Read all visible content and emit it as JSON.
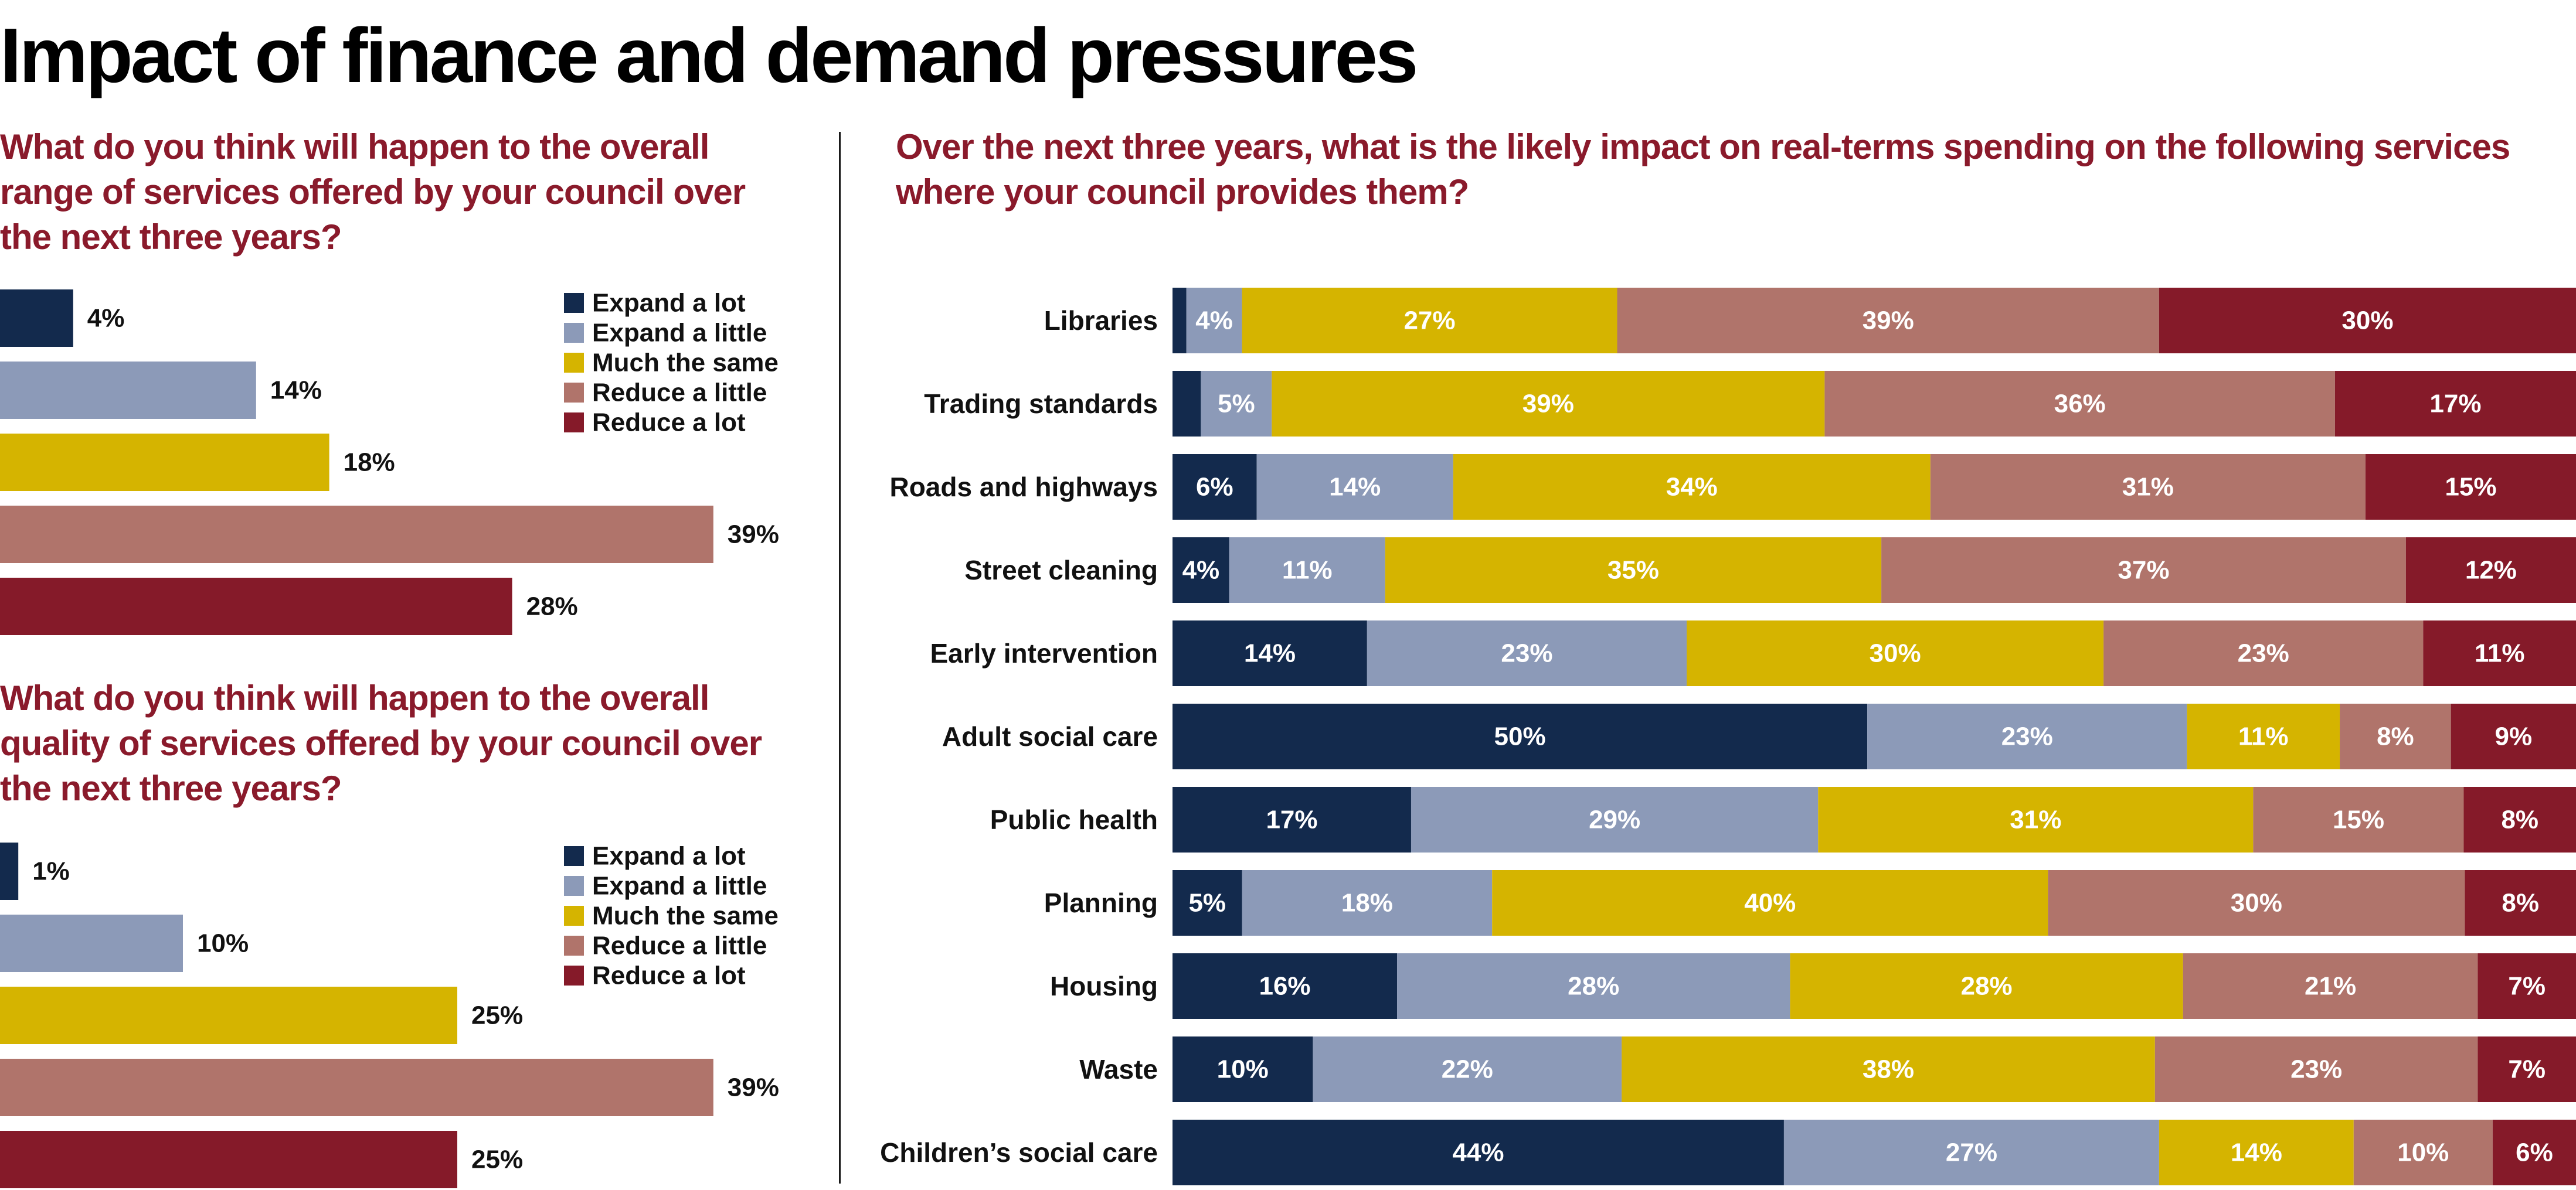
{
  "title": "Impact of finance and demand pressures",
  "colors": {
    "expand_lot": "#132a4d",
    "expand_little": "#8c9ab8",
    "same": "#d5b400",
    "reduce_little": "#b0746b",
    "reduce_lot": "#851a29"
  },
  "chart_data": [
    {
      "type": "bar",
      "orientation": "horizontal",
      "title": "What do you think will happen to the overall range of services offered by your council over the next three years?",
      "categories": [
        "Expand a lot",
        "Expand a little",
        "Much the same",
        "Reduce a little",
        "Reduce a lot"
      ],
      "values": [
        4,
        14,
        18,
        39,
        28
      ],
      "labels": [
        "4%",
        "14%",
        "18%",
        "39%",
        "28%"
      ],
      "legend": [
        "Expand a lot",
        "Expand a little",
        "Much the same",
        "Reduce a little",
        "Reduce a lot"
      ],
      "unit": "%"
    },
    {
      "type": "bar",
      "orientation": "horizontal",
      "title": "What do you think will happen to the overall quality of services offered by your council over the next three years?",
      "categories": [
        "Expand a lot",
        "Expand a little",
        "Much the same",
        "Reduce a little",
        "Reduce a lot"
      ],
      "values": [
        1,
        10,
        25,
        39,
        25
      ],
      "labels": [
        "1%",
        "10%",
        "25%",
        "39%",
        "25%"
      ],
      "legend": [
        "Expand a lot",
        "Expand a little",
        "Much the same",
        "Reduce a little",
        "Reduce a lot"
      ],
      "unit": "%"
    },
    {
      "type": "bar",
      "orientation": "horizontal",
      "stacked": true,
      "title": "Over the next three years, what is the likely impact on real-terms spending on the following services where your council provides them?",
      "series_names": [
        "Expand a lot",
        "Expand a little",
        "Much the same",
        "Reduce a little",
        "Reduce a lot"
      ],
      "rows": [
        {
          "category": "Libraries",
          "values": [
            1,
            4,
            27,
            39,
            30
          ],
          "labels": [
            "",
            "4%",
            "27%",
            "39%",
            "30%"
          ]
        },
        {
          "category": "Trading standards",
          "values": [
            2,
            5,
            39,
            36,
            17
          ],
          "labels": [
            "",
            "5%",
            "39%",
            "36%",
            "17%"
          ]
        },
        {
          "category": "Roads and highways",
          "values": [
            6,
            14,
            34,
            31,
            15
          ],
          "labels": [
            "6%",
            "14%",
            "34%",
            "31%",
            "15%"
          ]
        },
        {
          "category": "Street cleaning",
          "values": [
            4,
            11,
            35,
            37,
            12
          ],
          "labels": [
            "4%",
            "11%",
            "35%",
            "37%",
            "12%"
          ]
        },
        {
          "category": "Early intervention",
          "values": [
            14,
            23,
            30,
            23,
            11
          ],
          "labels": [
            "14%",
            "23%",
            "30%",
            "23%",
            "11%"
          ]
        },
        {
          "category": "Adult social care",
          "values": [
            50,
            23,
            11,
            8,
            9
          ],
          "labels": [
            "50%",
            "23%",
            "11%",
            "8%",
            "9%"
          ]
        },
        {
          "category": "Public health",
          "values": [
            17,
            29,
            31,
            15,
            8
          ],
          "labels": [
            "17%",
            "29%",
            "31%",
            "15%",
            "8%"
          ]
        },
        {
          "category": "Planning",
          "values": [
            5,
            18,
            40,
            30,
            8
          ],
          "labels": [
            "5%",
            "18%",
            "40%",
            "30%",
            "8%"
          ]
        },
        {
          "category": "Housing",
          "values": [
            16,
            28,
            28,
            21,
            7
          ],
          "labels": [
            "16%",
            "28%",
            "28%",
            "21%",
            "7%"
          ]
        },
        {
          "category": "Waste",
          "values": [
            10,
            22,
            38,
            23,
            7
          ],
          "labels": [
            "10%",
            "22%",
            "38%",
            "23%",
            "7%"
          ]
        },
        {
          "category": "Children’s social care",
          "values": [
            44,
            27,
            14,
            10,
            6
          ],
          "labels": [
            "44%",
            "27%",
            "14%",
            "10%",
            "6%"
          ]
        }
      ],
      "unit": "%"
    }
  ]
}
